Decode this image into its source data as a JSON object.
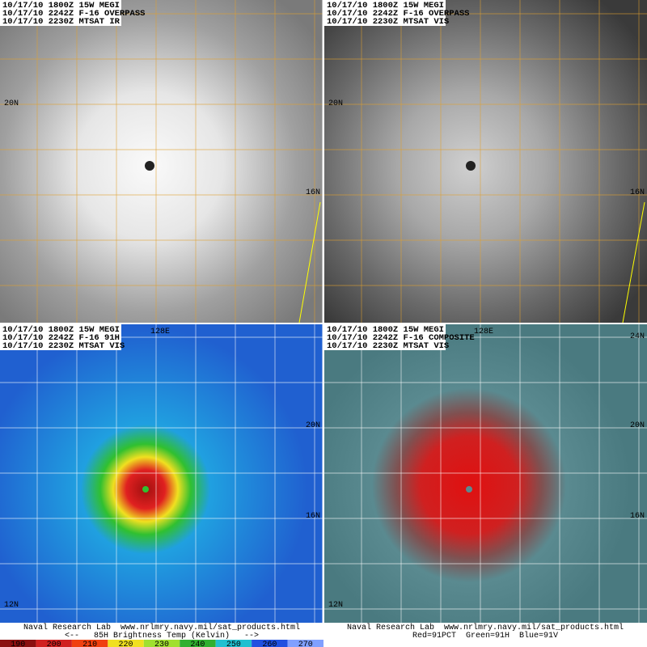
{
  "panels": [
    {
      "header": [
        "10/17/10 1800Z 15W MEGI",
        "10/17/10 2242Z F-16 OVERPASS",
        "10/17/10 2230Z MTSAT IR"
      ],
      "grid_labels": [
        "20N",
        "16N"
      ]
    },
    {
      "header": [
        "10/17/10 1800Z 15W MEGI",
        "10/17/10 2242Z F-16 OVERPASS",
        "10/17/10 2230Z MTSAT VIS"
      ],
      "grid_labels": [
        "20N",
        "16N"
      ]
    },
    {
      "header": [
        "10/17/10 1800Z 15W MEGI",
        "10/17/10 2242Z F-16 91H",
        "10/17/10 2230Z MTSAT VIS"
      ],
      "grid_labels": [
        "128E",
        "20N",
        "16N",
        "12N"
      ]
    },
    {
      "header": [
        "10/17/10 1800Z 15W MEGI",
        "10/17/10 2242Z F-16 COMPOSITE",
        "10/17/10 2230Z MTSAT VIS"
      ],
      "grid_labels": [
        "128E",
        "24N",
        "20N",
        "16N",
        "12N"
      ]
    }
  ],
  "footer": {
    "left": {
      "credit": "Naval Research Lab  www.nrlmry.navy.mil/sat_products.html",
      "caption": "<--   85H Brightness Temp (Kelvin)   -->",
      "scale": [
        "190",
        "200",
        "210",
        "220",
        "230",
        "240",
        "250",
        "260",
        "270"
      ]
    },
    "right": {
      "credit": "Naval Research Lab  www.nrlmry.navy.mil/sat_products.html",
      "caption": "Red=91PCT  Green=91H  Blue=91V"
    }
  }
}
